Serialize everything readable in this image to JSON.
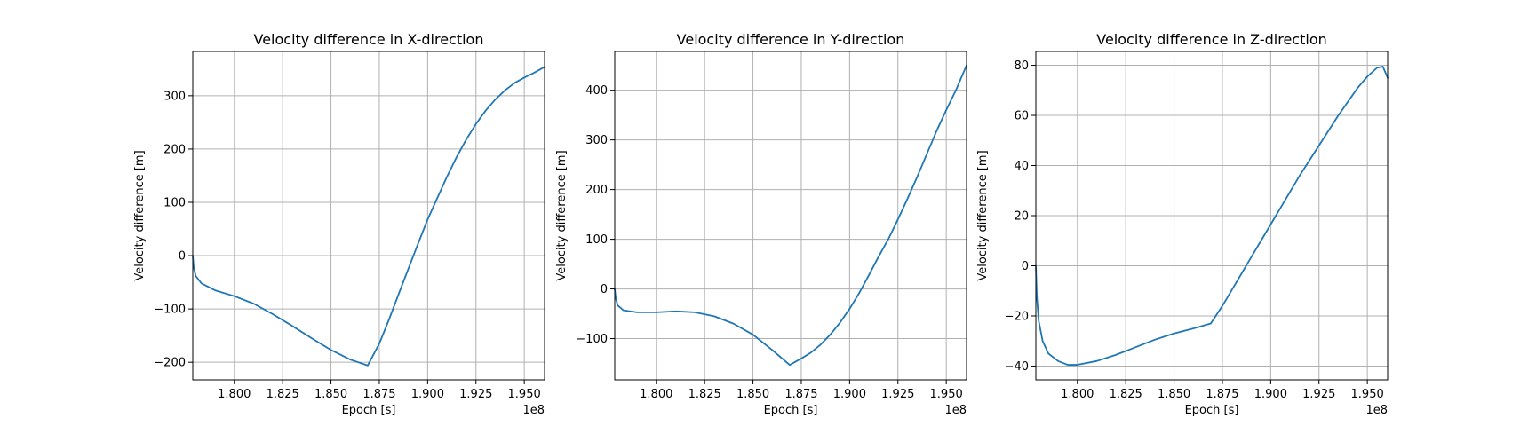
{
  "figure": {
    "background": "#ffffff"
  },
  "chart_data": [
    {
      "type": "line",
      "title": "Velocity difference in X-direction",
      "xlabel": "Epoch [s]",
      "ylabel": "Velocity difference [m]",
      "x_offset_label": "1e8",
      "xlim": [
        1.7785,
        1.9605
      ],
      "ylim": [
        -233,
        383
      ],
      "xticks": [
        1.8,
        1.825,
        1.85,
        1.875,
        1.9,
        1.925,
        1.95
      ],
      "xtick_labels": [
        "1.800",
        "1.825",
        "1.850",
        "1.875",
        "1.900",
        "1.925",
        "1.950"
      ],
      "yticks": [
        -200,
        -100,
        0,
        100,
        200,
        300
      ],
      "ytick_labels": [
        "−200",
        "−100",
        "0",
        "100",
        "200",
        "300"
      ],
      "grid": true,
      "series": [
        {
          "color": "#1f77b4",
          "x": [
            1.7785,
            1.779,
            1.78,
            1.783,
            1.79,
            1.8,
            1.81,
            1.82,
            1.83,
            1.84,
            1.85,
            1.86,
            1.869,
            1.875,
            1.88,
            1.885,
            1.89,
            1.895,
            1.9,
            1.905,
            1.91,
            1.915,
            1.92,
            1.925,
            1.93,
            1.935,
            1.94,
            1.945,
            1.95,
            1.955,
            1.9605
          ],
          "y": [
            0,
            -22,
            -38,
            -52,
            -65,
            -76,
            -90,
            -110,
            -132,
            -155,
            -177,
            -195,
            -206,
            -165,
            -120,
            -72,
            -25,
            22,
            68,
            108,
            148,
            185,
            218,
            247,
            272,
            293,
            310,
            324,
            334,
            343,
            354
          ]
        }
      ]
    },
    {
      "type": "line",
      "title": "Velocity difference in Y-direction",
      "xlabel": "Epoch [s]",
      "ylabel": "Velocity difference [m]",
      "x_offset_label": "1e8",
      "xlim": [
        1.7785,
        1.9605
      ],
      "ylim": [
        -183,
        478
      ],
      "xticks": [
        1.8,
        1.825,
        1.85,
        1.875,
        1.9,
        1.925,
        1.95
      ],
      "xtick_labels": [
        "1.800",
        "1.825",
        "1.850",
        "1.875",
        "1.900",
        "1.925",
        "1.950"
      ],
      "yticks": [
        -100,
        0,
        100,
        200,
        300,
        400
      ],
      "ytick_labels": [
        "−100",
        "0",
        "100",
        "200",
        "300",
        "400"
      ],
      "grid": true,
      "series": [
        {
          "color": "#1f77b4",
          "x": [
            1.7785,
            1.779,
            1.78,
            1.783,
            1.79,
            1.8,
            1.81,
            1.82,
            1.83,
            1.84,
            1.85,
            1.86,
            1.869,
            1.875,
            1.88,
            1.885,
            1.89,
            1.895,
            1.9,
            1.905,
            1.91,
            1.915,
            1.92,
            1.925,
            1.93,
            1.935,
            1.94,
            1.945,
            1.95,
            1.955,
            1.9605
          ],
          "y": [
            0,
            -18,
            -33,
            -43,
            -47,
            -47,
            -45,
            -47,
            -55,
            -70,
            -92,
            -123,
            -153,
            -140,
            -128,
            -112,
            -92,
            -68,
            -40,
            -8,
            28,
            65,
            100,
            140,
            182,
            226,
            272,
            318,
            360,
            400,
            450
          ]
        }
      ]
    },
    {
      "type": "line",
      "title": "Velocity difference in Z-direction",
      "xlabel": "Epoch [s]",
      "ylabel": "Velocity difference [m]",
      "x_offset_label": "1e8",
      "xlim": [
        1.7785,
        1.9605
      ],
      "ylim": [
        -45.5,
        85.5
      ],
      "xticks": [
        1.8,
        1.825,
        1.85,
        1.875,
        1.9,
        1.925,
        1.95
      ],
      "xtick_labels": [
        "1.800",
        "1.825",
        "1.850",
        "1.875",
        "1.900",
        "1.925",
        "1.950"
      ],
      "yticks": [
        -40,
        -20,
        0,
        20,
        40,
        60,
        80
      ],
      "ytick_labels": [
        "−40",
        "−20",
        "0",
        "20",
        "40",
        "60",
        "80"
      ],
      "grid": true,
      "series": [
        {
          "color": "#1f77b4",
          "x": [
            1.7785,
            1.779,
            1.78,
            1.782,
            1.785,
            1.79,
            1.795,
            1.8,
            1.81,
            1.82,
            1.83,
            1.84,
            1.85,
            1.86,
            1.869,
            1.875,
            1.88,
            1.885,
            1.89,
            1.895,
            1.9,
            1.905,
            1.91,
            1.915,
            1.92,
            1.925,
            1.93,
            1.935,
            1.94,
            1.945,
            1.95,
            1.955,
            1.958,
            1.9605
          ],
          "y": [
            0,
            -12,
            -22,
            -30,
            -35,
            -38,
            -39.5,
            -39.5,
            -38,
            -35.5,
            -32.5,
            -29.5,
            -27,
            -25,
            -23,
            -16,
            -9.5,
            -3,
            3.5,
            10,
            16.5,
            23,
            29.5,
            36,
            42,
            48,
            54,
            60,
            65.5,
            71,
            75.5,
            79,
            79.5,
            75
          ]
        }
      ]
    }
  ]
}
